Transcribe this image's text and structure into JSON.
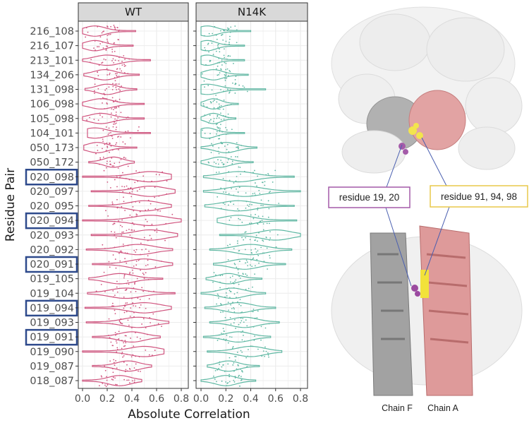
{
  "chart_data": {
    "type": "violin",
    "xlabel": "Absolute Correlation",
    "ylabel": "Residue Pair",
    "xlim": [
      0,
      0.8
    ],
    "xticks": [
      "0.0",
      "0.2",
      "0.4",
      "0.6",
      "0.8"
    ],
    "grid": true,
    "categories": [
      "216_108",
      "216_107",
      "213_101",
      "134_206",
      "131_098",
      "106_098",
      "105_098",
      "104_101",
      "050_173",
      "050_172",
      "020_098",
      "020_097",
      "020_095",
      "020_094",
      "020_093",
      "020_092",
      "020_091",
      "019_105",
      "019_104",
      "019_094",
      "019_093",
      "019_091",
      "019_090",
      "019_087",
      "018_087"
    ],
    "highlighted": [
      "020_098",
      "020_094",
      "020_091",
      "019_094",
      "019_091"
    ],
    "highlight_color": "#2e4a8c",
    "panels": [
      {
        "name": "WT",
        "color": "#d0557f",
        "min": [
          0,
          0,
          0,
          0.01,
          0.02,
          0,
          0,
          0.04,
          0.01,
          0.05,
          0,
          0.07,
          0.05,
          0,
          0.07,
          0.03,
          0.08,
          0.05,
          0.04,
          0.02,
          0.03,
          0.08,
          0,
          0.08,
          0
        ],
        "max": [
          0.43,
          0.41,
          0.55,
          0.46,
          0.44,
          0.5,
          0.5,
          0.55,
          0.44,
          0.42,
          0.72,
          0.75,
          0.72,
          0.8,
          0.77,
          0.73,
          0.73,
          0.65,
          0.75,
          0.72,
          0.7,
          0.63,
          0.66,
          0.56,
          0.48
        ],
        "mode": [
          0.1,
          0.1,
          0.2,
          0.18,
          0.2,
          0.15,
          0.15,
          0.1,
          0.12,
          0.25,
          0.55,
          0.55,
          0.5,
          0.55,
          0.55,
          0.45,
          0.5,
          0.3,
          0.35,
          0.5,
          0.45,
          0.4,
          0.5,
          0.37,
          0.3
        ]
      },
      {
        "name": "N14K",
        "color": "#5fb8a3",
        "min": [
          0,
          0,
          0,
          0,
          0,
          0,
          0,
          0,
          0,
          0,
          0.02,
          0.02,
          0.03,
          0.13,
          0.15,
          0.07,
          0.1,
          0.04,
          0,
          0.03,
          0.07,
          0.02,
          0.05,
          0.05,
          0
        ],
        "max": [
          0.4,
          0.35,
          0.35,
          0.38,
          0.52,
          0.3,
          0.28,
          0.35,
          0.45,
          0.42,
          0.75,
          0.8,
          0.75,
          0.77,
          0.8,
          0.73,
          0.68,
          0.49,
          0.52,
          0.6,
          0.63,
          0.56,
          0.65,
          0.47,
          0.44
        ],
        "mode": [
          0.05,
          0.05,
          0.05,
          0.1,
          0.05,
          0.1,
          0.1,
          0.05,
          0.2,
          0.15,
          0.3,
          0.35,
          0.3,
          0.3,
          0.6,
          0.4,
          0.35,
          0.22,
          0.25,
          0.3,
          0.35,
          0.3,
          0.4,
          0.22,
          0.2
        ]
      }
    ]
  },
  "structure": {
    "label_left": "residue 19, 20",
    "label_right": "residue 91, 94, 98",
    "chain_f": "Chain F",
    "chain_a": "Chain A",
    "colors": {
      "chain_a": "#d98a8a",
      "chain_f": "#8c8c8c",
      "res_19_20": "#9b4aa0",
      "res_91_98": "#f2e23a",
      "box_left": "#a45aa8",
      "box_right": "#e8c84a"
    }
  }
}
